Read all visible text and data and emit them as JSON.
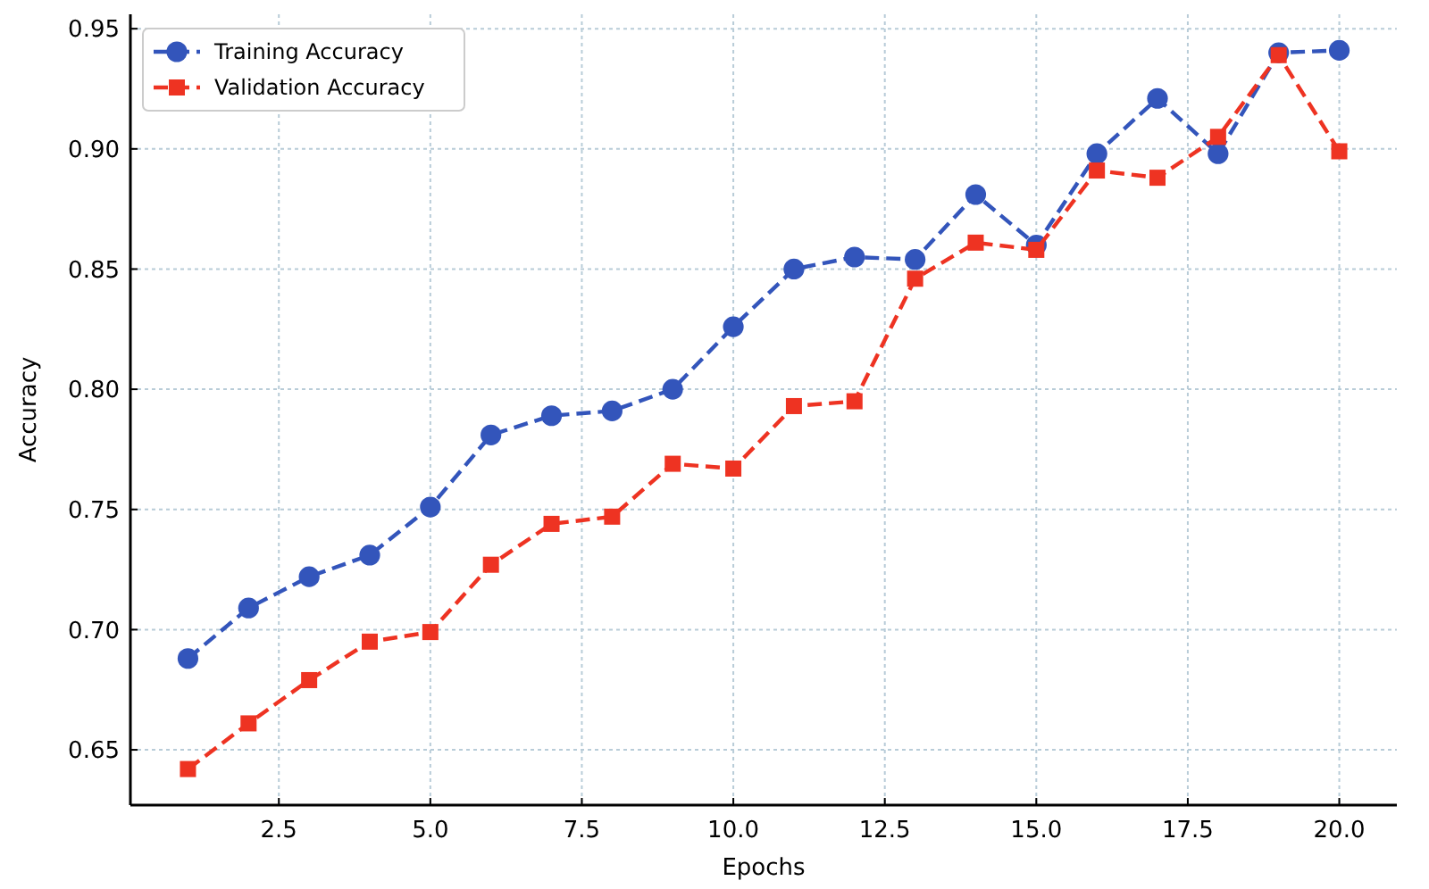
{
  "chart_data": {
    "type": "line",
    "xlabel": "Epochs",
    "ylabel": "Accuracy",
    "x": [
      1,
      2,
      3,
      4,
      5,
      6,
      7,
      8,
      9,
      10,
      11,
      12,
      13,
      14,
      15,
      16,
      17,
      18,
      19,
      20
    ],
    "series": [
      {
        "name": "Training Accuracy",
        "color": "#3355bb",
        "marker": "circle",
        "values": [
          0.688,
          0.709,
          0.722,
          0.731,
          0.751,
          0.781,
          0.789,
          0.791,
          0.8,
          0.826,
          0.85,
          0.855,
          0.854,
          0.881,
          0.86,
          0.898,
          0.921,
          0.898,
          0.94,
          0.941
        ]
      },
      {
        "name": "Validation Accuracy",
        "color": "#ee3322",
        "marker": "square",
        "values": [
          0.642,
          0.661,
          0.679,
          0.695,
          0.699,
          0.727,
          0.744,
          0.747,
          0.769,
          0.767,
          0.793,
          0.795,
          0.846,
          0.861,
          0.858,
          0.891,
          0.888,
          0.905,
          0.939,
          0.899
        ]
      }
    ],
    "xlim": [
      0.05,
      20.95
    ],
    "xticks": [
      {
        "value": 2.5,
        "label": "2.5"
      },
      {
        "value": 5,
        "label": "5.0"
      },
      {
        "value": 7.5,
        "label": "7.5"
      },
      {
        "value": 10,
        "label": "10.0"
      },
      {
        "value": 12.5,
        "label": "12.5"
      },
      {
        "value": 15,
        "label": "15.0"
      },
      {
        "value": 17.5,
        "label": "17.5"
      },
      {
        "value": 20,
        "label": "20.0"
      }
    ],
    "ylim": [
      0.627,
      0.956
    ],
    "yticks": [
      {
        "value": 0.65,
        "label": "0.65"
      },
      {
        "value": 0.7,
        "label": "0.70"
      },
      {
        "value": 0.75,
        "label": "0.75"
      },
      {
        "value": 0.8,
        "label": "0.80"
      },
      {
        "value": 0.85,
        "label": "0.85"
      },
      {
        "value": 0.9,
        "label": "0.90"
      },
      {
        "value": 0.95,
        "label": "0.95"
      }
    ],
    "grid": true,
    "legend": "top left",
    "line_style": "dashed"
  }
}
